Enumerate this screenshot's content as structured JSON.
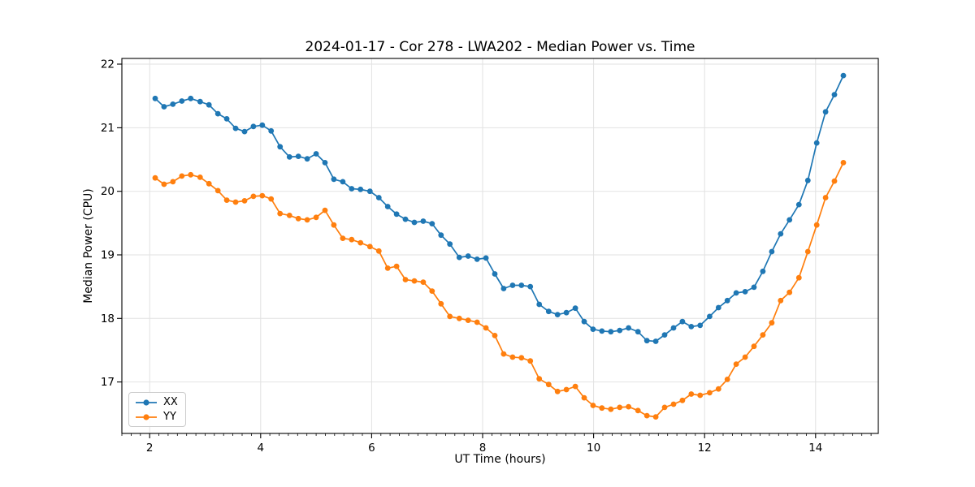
{
  "chart_data": {
    "type": "line",
    "title": "2024-01-17 - Cor 278 - LWA202 - Median Power vs. Time",
    "xlabel": "UT Time (hours)",
    "ylabel": "Median Power (CPU)",
    "xlim": [
      1.5,
      15.13
    ],
    "ylim": [
      16.19,
      22.09
    ],
    "x_ticks": [
      2,
      4,
      6,
      8,
      10,
      12,
      14
    ],
    "x_tick_labels": [
      "2",
      "4",
      "6",
      "8",
      "10",
      "12",
      "14"
    ],
    "y_ticks": [
      17,
      18,
      19,
      20,
      21,
      22
    ],
    "y_tick_labels": [
      "17",
      "18",
      "19",
      "20",
      "21",
      "22"
    ],
    "x_minor_tick_step_hours": 0.1667,
    "grid": true,
    "grid_color": "#e2e2e2",
    "spine_color": "#000000",
    "legend_position": "lower left",
    "x": [
      2.1,
      2.26,
      2.42,
      2.58,
      2.74,
      2.91,
      3.07,
      3.23,
      3.39,
      3.55,
      3.71,
      3.87,
      4.03,
      4.19,
      4.35,
      4.52,
      4.68,
      4.84,
      5.0,
      5.16,
      5.32,
      5.48,
      5.64,
      5.8,
      5.97,
      6.13,
      6.29,
      6.45,
      6.61,
      6.77,
      6.93,
      7.09,
      7.25,
      7.41,
      7.58,
      7.74,
      7.9,
      8.06,
      8.22,
      8.38,
      8.54,
      8.7,
      8.86,
      9.02,
      9.19,
      9.35,
      9.51,
      9.67,
      9.83,
      9.99,
      10.15,
      10.31,
      10.47,
      10.63,
      10.8,
      10.96,
      11.12,
      11.28,
      11.44,
      11.6,
      11.76,
      11.92,
      12.09,
      12.25,
      12.41,
      12.57,
      12.73,
      12.89,
      13.05,
      13.21,
      13.37,
      13.53,
      13.7,
      13.86,
      14.02,
      14.18,
      14.34,
      14.5
    ],
    "series": [
      {
        "name": "XX",
        "color": "#1f77b4",
        "marker": "circle",
        "values": [
          21.46,
          21.33,
          21.37,
          21.42,
          21.46,
          21.41,
          21.36,
          21.22,
          21.14,
          20.99,
          20.94,
          21.02,
          21.04,
          20.95,
          20.7,
          20.54,
          20.55,
          20.51,
          20.59,
          20.45,
          20.19,
          20.15,
          20.04,
          20.03,
          20.0,
          19.9,
          19.76,
          19.64,
          19.56,
          19.51,
          19.53,
          19.49,
          19.31,
          19.17,
          18.96,
          18.98,
          18.93,
          18.95,
          18.7,
          18.47,
          18.52,
          18.52,
          18.5,
          18.22,
          18.11,
          18.06,
          18.09,
          18.16,
          17.95,
          17.83,
          17.8,
          17.79,
          17.81,
          17.85,
          17.79,
          17.65,
          17.64,
          17.74,
          17.85,
          17.95,
          17.87,
          17.89,
          18.03,
          18.17,
          18.28,
          18.4,
          18.42,
          18.49,
          18.74,
          19.05,
          19.33,
          19.55,
          19.79,
          20.17,
          20.76,
          21.25,
          21.52,
          21.82
        ]
      },
      {
        "name": "YY",
        "color": "#ff7f0e",
        "marker": "circle",
        "values": [
          20.21,
          20.11,
          20.15,
          20.24,
          20.26,
          20.22,
          20.12,
          20.01,
          19.86,
          19.83,
          19.85,
          19.92,
          19.93,
          19.88,
          19.65,
          19.62,
          19.57,
          19.55,
          19.59,
          19.7,
          19.47,
          19.26,
          19.24,
          19.19,
          19.13,
          19.06,
          18.79,
          18.82,
          18.61,
          18.59,
          18.57,
          18.43,
          18.23,
          18.03,
          18.0,
          17.97,
          17.94,
          17.85,
          17.73,
          17.44,
          17.39,
          17.38,
          17.33,
          17.05,
          16.96,
          16.85,
          16.88,
          16.93,
          16.75,
          16.63,
          16.59,
          16.57,
          16.6,
          16.61,
          16.55,
          16.47,
          16.45,
          16.6,
          16.65,
          16.71,
          16.81,
          16.79,
          16.83,
          16.89,
          17.04,
          17.28,
          17.39,
          17.56,
          17.74,
          17.93,
          18.28,
          18.41,
          18.64,
          19.05,
          19.47,
          19.9,
          20.16,
          20.45
        ]
      }
    ]
  }
}
